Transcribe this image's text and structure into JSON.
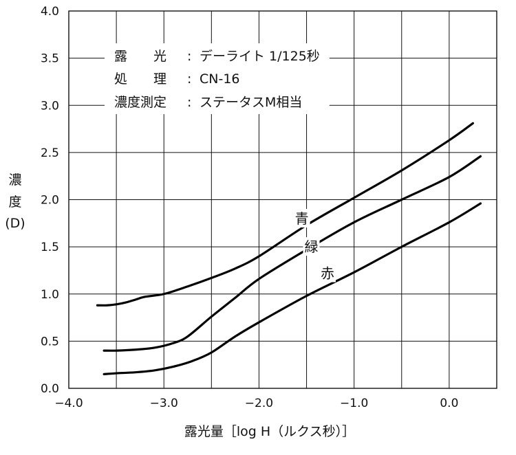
{
  "chart_data": {
    "type": "line",
    "xlabel": "露光量［log H（ルクス秒）］",
    "ylabel": [
      "濃",
      "度",
      "(D)"
    ],
    "xlim": [
      -4.0,
      0.5
    ],
    "ylim": [
      0.0,
      4.0
    ],
    "xticks": [
      -4.0,
      -3.5,
      -3.0,
      -2.5,
      -2.0,
      -1.5,
      -1.0,
      -0.5,
      0.0,
      0.5
    ],
    "xtick_labels": [
      "−4.0",
      "",
      "−3.0",
      "",
      "−2.0",
      "",
      "−1.0",
      "",
      "0.0",
      ""
    ],
    "yticks": [
      0.0,
      0.5,
      1.0,
      1.5,
      2.0,
      2.5,
      3.0,
      3.5,
      4.0
    ],
    "ytick_labels": [
      "0.0",
      "0.5",
      "1.0",
      "1.5",
      "2.0",
      "2.5",
      "3.0",
      "3.5",
      "4.0"
    ],
    "grid": true,
    "annotation": {
      "lines": [
        {
          "key": "露　　光",
          "sep": ":",
          "value": "デーライト 1/125秒"
        },
        {
          "key": "処　　理",
          "sep": ":",
          "value": "CN-16"
        },
        {
          "key": "濃度測定",
          "sep": ":",
          "value": "ステータスM相当"
        }
      ]
    },
    "series": [
      {
        "name": "青",
        "x": [
          -3.7,
          -3.6,
          -3.5,
          -3.4,
          -3.3,
          -3.2,
          -3.0,
          -2.75,
          -2.5,
          -2.25,
          -2.0,
          -1.5,
          -1.0,
          -0.5,
          0.0,
          0.25
        ],
        "y": [
          0.88,
          0.88,
          0.89,
          0.91,
          0.94,
          0.97,
          1.0,
          1.08,
          1.17,
          1.27,
          1.4,
          1.73,
          2.02,
          2.31,
          2.63,
          2.81
        ]
      },
      {
        "name": "緑",
        "x": [
          -3.63,
          -3.5,
          -3.3,
          -3.1,
          -2.9,
          -2.75,
          -2.5,
          -2.25,
          -2.0,
          -1.5,
          -1.0,
          -0.5,
          0.0,
          0.33
        ],
        "y": [
          0.4,
          0.4,
          0.41,
          0.43,
          0.48,
          0.55,
          0.76,
          0.96,
          1.16,
          1.47,
          1.76,
          2.0,
          2.24,
          2.46
        ]
      },
      {
        "name": "赤",
        "x": [
          -3.63,
          -3.5,
          -3.3,
          -3.1,
          -2.9,
          -2.7,
          -2.5,
          -2.25,
          -2.0,
          -1.5,
          -1.0,
          -0.5,
          0.0,
          0.33
        ],
        "y": [
          0.15,
          0.16,
          0.17,
          0.19,
          0.23,
          0.29,
          0.38,
          0.55,
          0.7,
          0.98,
          1.23,
          1.5,
          1.76,
          1.96
        ]
      }
    ],
    "series_label_positions": [
      {
        "name": "青",
        "x": -1.55,
        "y": 1.8
      },
      {
        "name": "緑",
        "x": -1.45,
        "y": 1.5
      },
      {
        "name": "赤",
        "x": -1.28,
        "y": 1.22
      }
    ]
  }
}
